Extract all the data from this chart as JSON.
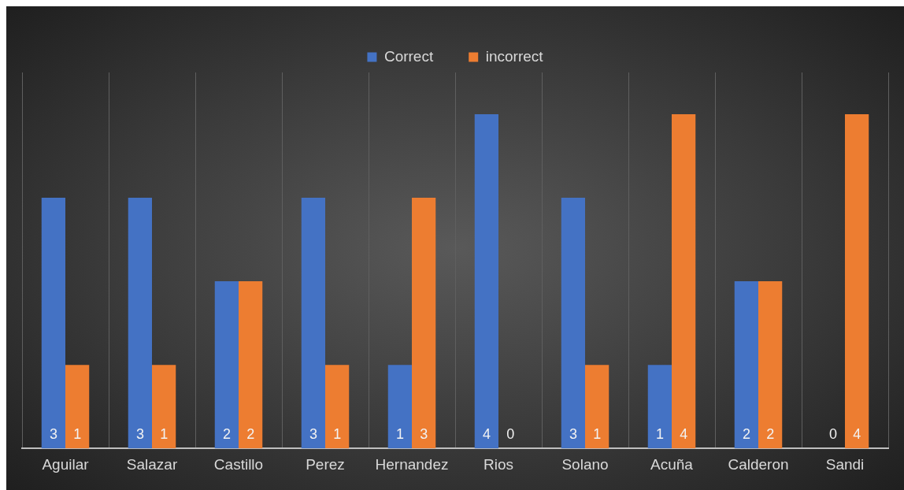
{
  "chart_data": {
    "type": "bar",
    "categories": [
      "Aguilar",
      "Salazar",
      "Castillo",
      "Perez",
      "Hernandez",
      "Rios",
      "Solano",
      "Acuña",
      "Calderon",
      "Sandi"
    ],
    "series": [
      {
        "name": "Correct",
        "color": "#4472c4",
        "values": [
          3,
          3,
          2,
          3,
          1,
          4,
          3,
          1,
          2,
          0
        ]
      },
      {
        "name": "incorrect",
        "color": "#ed7d31",
        "values": [
          1,
          1,
          2,
          1,
          3,
          0,
          1,
          4,
          2,
          4
        ]
      }
    ],
    "grid": "x",
    "legend": "top",
    "data_labels": true
  }
}
